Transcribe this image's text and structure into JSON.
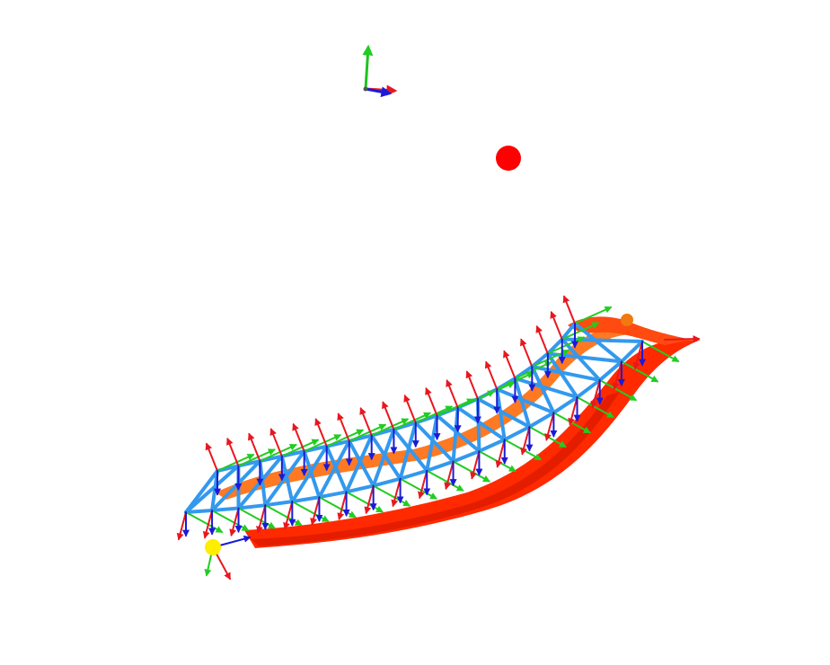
{
  "viewer": {
    "background_color": "#ffffff"
  },
  "axis_gizmo": {
    "x_color": "#e8171f",
    "y_color": "#1ec41e",
    "z_color": "#1a1ad8"
  },
  "markers": {
    "target_color": "#ff0000",
    "start_color": "#ffee00",
    "end_color": "#f07a10"
  },
  "colors": {
    "surface_main": "#ff2a00",
    "surface_shadow": "#e01a00",
    "surface_highlight": "#ff7a1a",
    "truss": "#3399ee",
    "frame_x": "#e8171f",
    "frame_y": "#22cc22",
    "frame_z": "#1a1ad8"
  }
}
